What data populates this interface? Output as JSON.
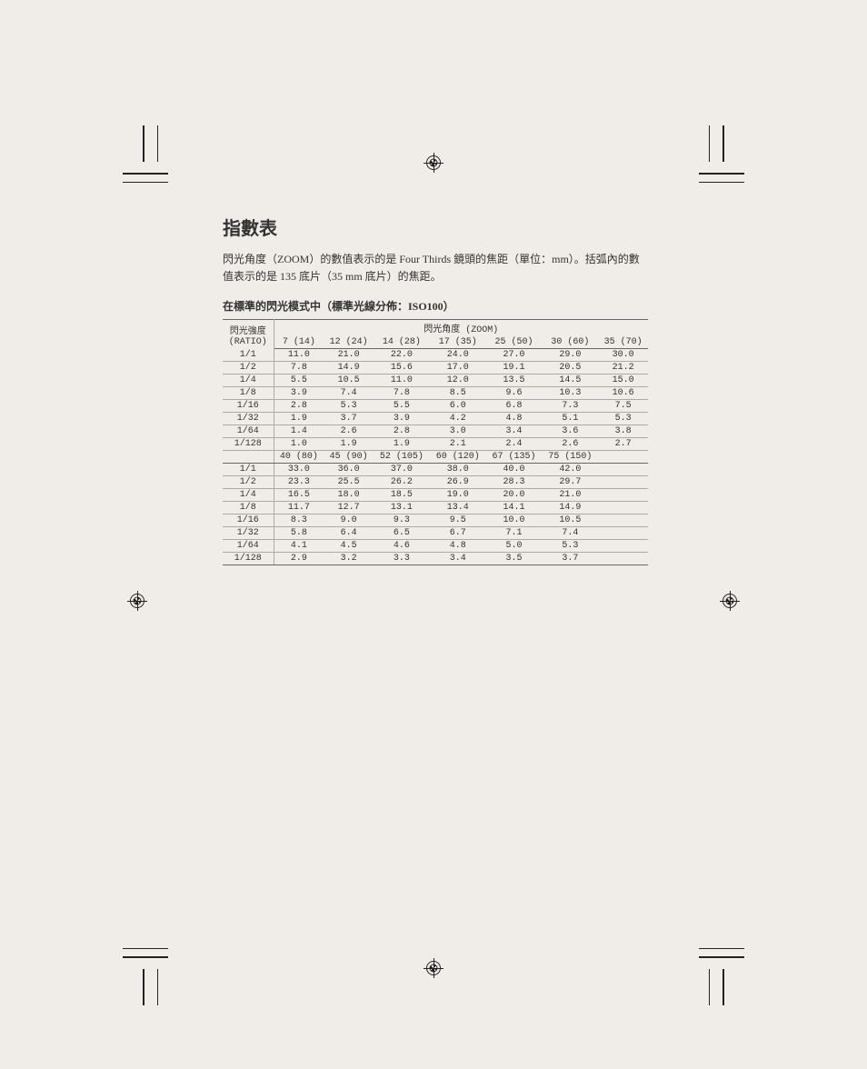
{
  "title": "指數表",
  "desc": "閃光角度（ZOOM）的數值表示的是 Four Thirds 鏡頭的焦距（單位：mm）。括弧內的數值表示的是 135 底片（35 mm 底片）的焦距。",
  "subtitle": "在標準的閃光模式中（標準光線分佈：ISO100）",
  "ratio_header_line1": "閃光強度",
  "ratio_header_line2": "(RATIO)",
  "zoom_header": "閃光角度 (ZOOM)",
  "cols1": [
    "7 (14)",
    "12 (24)",
    "14 (28)",
    "17 (35)",
    "25 (50)",
    "30 (60)",
    "35 (70)"
  ],
  "ratios": [
    "1/1",
    "1/2",
    "1/4",
    "1/8",
    "1/16",
    "1/32",
    "1/64",
    "1/128"
  ],
  "block1": [
    [
      "11.0",
      "21.0",
      "22.0",
      "24.0",
      "27.0",
      "29.0",
      "30.0"
    ],
    [
      "7.8",
      "14.9",
      "15.6",
      "17.0",
      "19.1",
      "20.5",
      "21.2"
    ],
    [
      "5.5",
      "10.5",
      "11.0",
      "12.0",
      "13.5",
      "14.5",
      "15.0"
    ],
    [
      "3.9",
      "7.4",
      "7.8",
      "8.5",
      "9.6",
      "10.3",
      "10.6"
    ],
    [
      "2.8",
      "5.3",
      "5.5",
      "6.0",
      "6.8",
      "7.3",
      "7.5"
    ],
    [
      "1.9",
      "3.7",
      "3.9",
      "4.2",
      "4.8",
      "5.1",
      "5.3"
    ],
    [
      "1.4",
      "2.6",
      "2.8",
      "3.0",
      "3.4",
      "3.6",
      "3.8"
    ],
    [
      "1.0",
      "1.9",
      "1.9",
      "2.1",
      "2.4",
      "2.6",
      "2.7"
    ]
  ],
  "cols2": [
    "40 (80)",
    "45 (90)",
    "52 (105)",
    "60 (120)",
    "67 (135)",
    "75 (150)",
    ""
  ],
  "block2": [
    [
      "33.0",
      "36.0",
      "37.0",
      "38.0",
      "40.0",
      "42.0",
      ""
    ],
    [
      "23.3",
      "25.5",
      "26.2",
      "26.9",
      "28.3",
      "29.7",
      ""
    ],
    [
      "16.5",
      "18.0",
      "18.5",
      "19.0",
      "20.0",
      "21.0",
      ""
    ],
    [
      "11.7",
      "12.7",
      "13.1",
      "13.4",
      "14.1",
      "14.9",
      ""
    ],
    [
      "8.3",
      "9.0",
      "9.3",
      "9.5",
      "10.0",
      "10.5",
      ""
    ],
    [
      "5.8",
      "6.4",
      "6.5",
      "6.7",
      "7.1",
      "7.4",
      ""
    ],
    [
      "4.1",
      "4.5",
      "4.6",
      "4.8",
      "5.0",
      "5.3",
      ""
    ],
    [
      "2.9",
      "3.2",
      "3.3",
      "3.4",
      "3.5",
      "3.7",
      ""
    ]
  ]
}
